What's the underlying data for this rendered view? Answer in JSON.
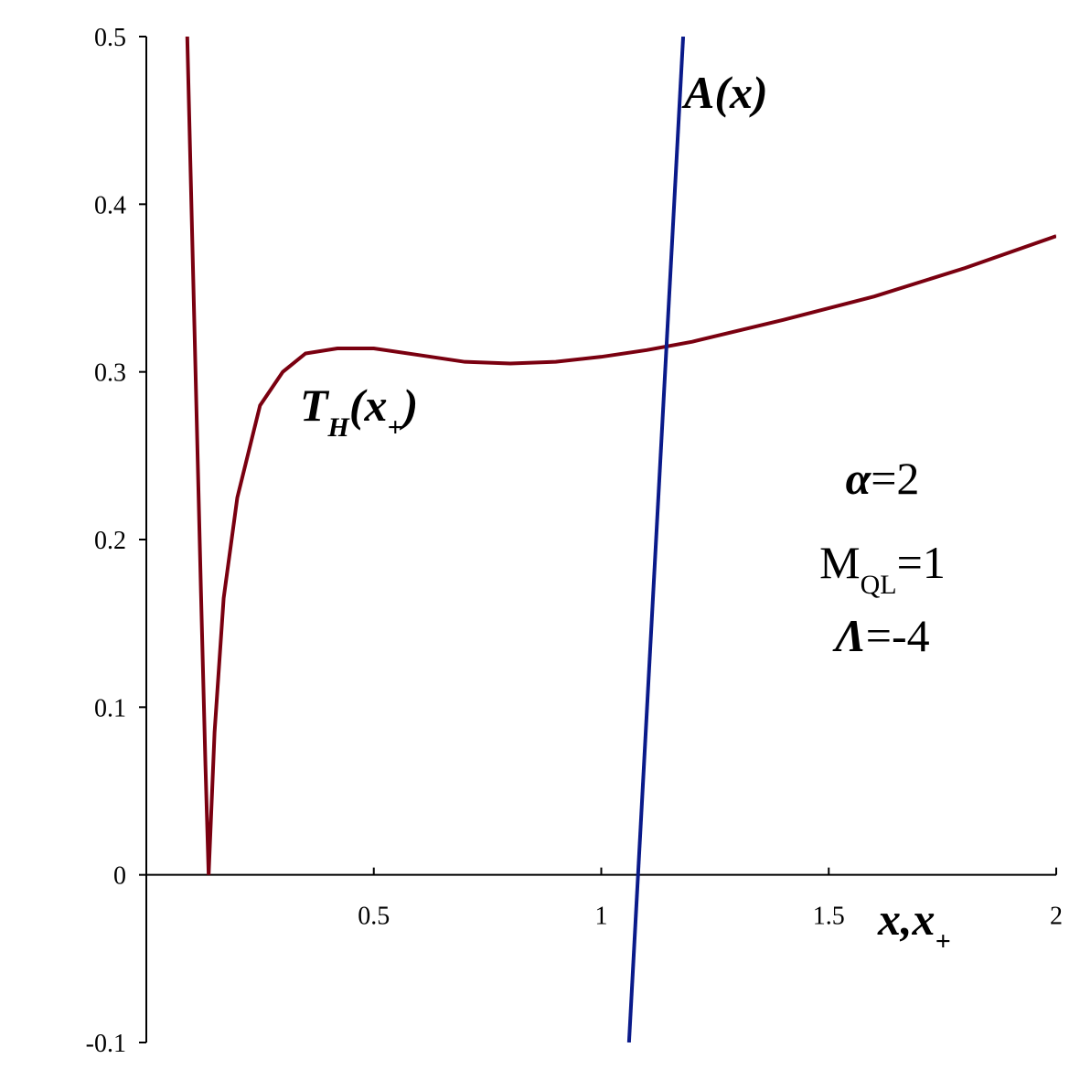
{
  "chart_data": {
    "type": "line",
    "xlim": [
      0,
      2
    ],
    "xticks": [
      0.5,
      1,
      1.5,
      2
    ],
    "ylim": [
      -0.1,
      0.5
    ],
    "yticks": [
      -0.1,
      0,
      0.1,
      0.2,
      0.3,
      0.4,
      0.5
    ],
    "xlabel": [
      {
        "text": "x,x"
      },
      {
        "text": "+",
        "sub": true
      }
    ],
    "series": [
      {
        "label": [
          {
            "text": "T"
          },
          {
            "text": "H",
            "sub": true
          },
          {
            "text": "(x"
          },
          {
            "text": "+",
            "sub": true
          },
          {
            "text": ")"
          }
        ],
        "color": "#7a0010",
        "x": [
          0.09,
          0.1,
          0.11,
          0.12,
          0.13,
          0.137,
          0.15,
          0.17,
          0.2,
          0.25,
          0.3,
          0.35,
          0.42,
          0.5,
          0.6,
          0.7,
          0.8,
          0.9,
          1.0,
          1.1,
          1.2,
          1.4,
          1.6,
          1.8,
          2.0
        ],
        "values": [
          0.5,
          0.39,
          0.28,
          0.17,
          0.065,
          0,
          0.085,
          0.165,
          0.225,
          0.28,
          0.3,
          0.311,
          0.314,
          0.314,
          0.31,
          0.306,
          0.305,
          0.306,
          0.309,
          0.313,
          0.318,
          0.331,
          0.345,
          0.362,
          0.381
        ]
      },
      {
        "label": [
          {
            "text": "A(x)"
          }
        ],
        "color": "#0a1a8a",
        "x": [
          1.061,
          1.18
        ],
        "values": [
          -0.1,
          0.5
        ]
      }
    ],
    "annotations": [
      [
        {
          "text": "α",
          "math": true
        },
        {
          "text": "=2"
        }
      ],
      [
        {
          "text": "M"
        },
        {
          "text": "QL",
          "sub": true
        },
        {
          "text": "=1"
        }
      ],
      [
        {
          "text": "Λ",
          "math": true
        },
        {
          "text": "=-4"
        }
      ]
    ]
  }
}
